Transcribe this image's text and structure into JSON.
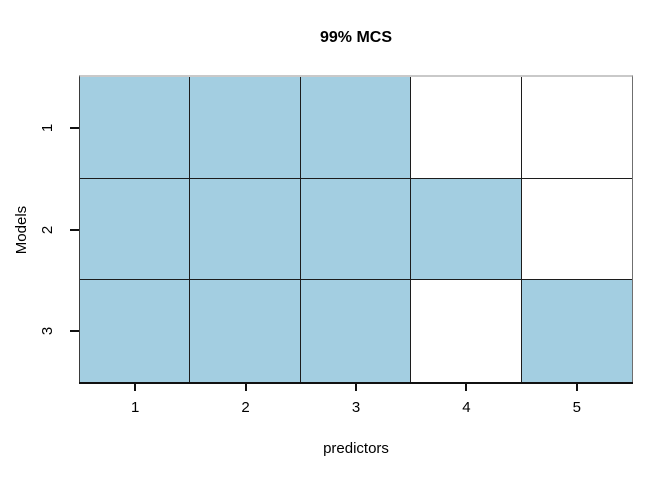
{
  "colors": {
    "shaded": "#A3CEE1",
    "unshaded": "#FFFFFF",
    "grid_line": "#1c1c1c",
    "axis_line": "#111111",
    "top_border": "#c9c9c9"
  },
  "chart_data": {
    "type": "heatmap",
    "title": "99% MCS",
    "xlabel": "predictors",
    "ylabel": "Models",
    "x_categories": [
      "1",
      "2",
      "3",
      "4",
      "5"
    ],
    "y_categories": [
      "1",
      "2",
      "3"
    ],
    "matrix_row_order": "top-to-bottom (Models 1, 2, 3)",
    "matrix": [
      [
        1,
        1,
        1,
        0,
        0
      ],
      [
        1,
        1,
        1,
        1,
        0
      ],
      [
        1,
        1,
        1,
        0,
        1
      ]
    ],
    "value_meaning": {
      "1": "shaded",
      "0": "unshaded"
    },
    "shaded_cells_model_predictor": [
      [
        1,
        1
      ],
      [
        1,
        2
      ],
      [
        1,
        3
      ],
      [
        2,
        1
      ],
      [
        2,
        2
      ],
      [
        2,
        3
      ],
      [
        2,
        4
      ],
      [
        3,
        1
      ],
      [
        3,
        2
      ],
      [
        3,
        3
      ],
      [
        3,
        5
      ]
    ],
    "grid": "cell borders on, no background grid",
    "legend": "none"
  }
}
